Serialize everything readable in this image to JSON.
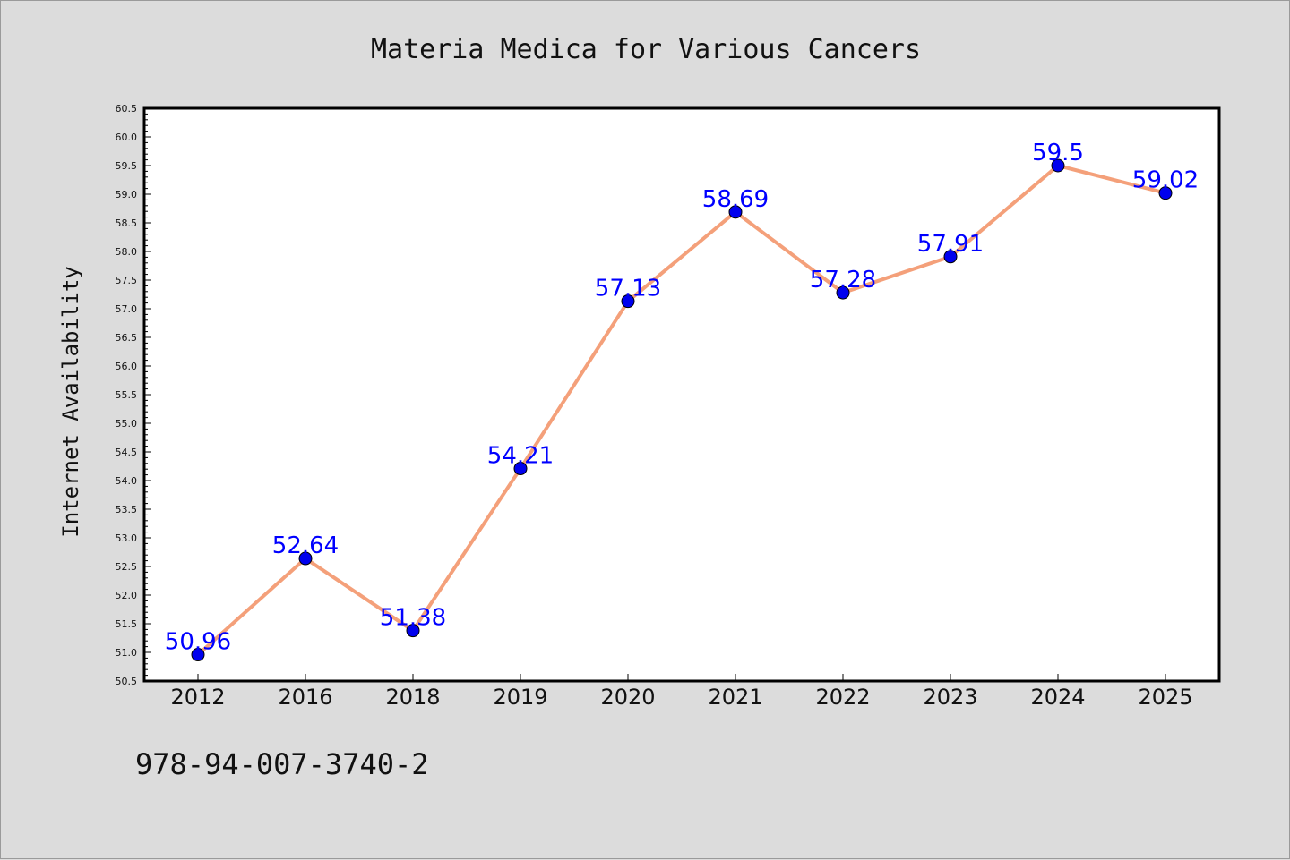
{
  "chart_data": {
    "type": "line",
    "title": "Materia Medica for Various Cancers",
    "xlabel": "",
    "ylabel": "Internet Availability",
    "categories": [
      "2012",
      "2016",
      "2018",
      "2019",
      "2020",
      "2021",
      "2022",
      "2023",
      "2024",
      "2025"
    ],
    "series": [
      {
        "values": [
          50.96,
          52.64,
          51.38,
          54.21,
          57.13,
          58.69,
          57.28,
          57.91,
          59.5,
          59.02
        ],
        "data_labels": [
          "50.96",
          "52.64",
          "51.38",
          "54.21",
          "57.13",
          "58.69",
          "57.28",
          "57.91",
          "59.5",
          "59.02"
        ],
        "line_color": "#f4a07a",
        "marker_color": "#0000ee"
      }
    ],
    "ylim": [
      50.5,
      60.5
    ],
    "y_ticks": [
      "50.5",
      "51.0",
      "51.5",
      "52.0",
      "52.5",
      "53.0",
      "53.5",
      "54.0",
      "54.5",
      "55.0",
      "55.5",
      "56.0",
      "56.5",
      "57.0",
      "57.5",
      "58.0",
      "58.5",
      "59.0",
      "59.5",
      "60.0",
      "60.5"
    ],
    "grid": false,
    "label_color": "#0000ff",
    "background": "#dcdcdc",
    "plot_background": "#ffffff"
  },
  "annotation": "978-94-007-3740-2"
}
